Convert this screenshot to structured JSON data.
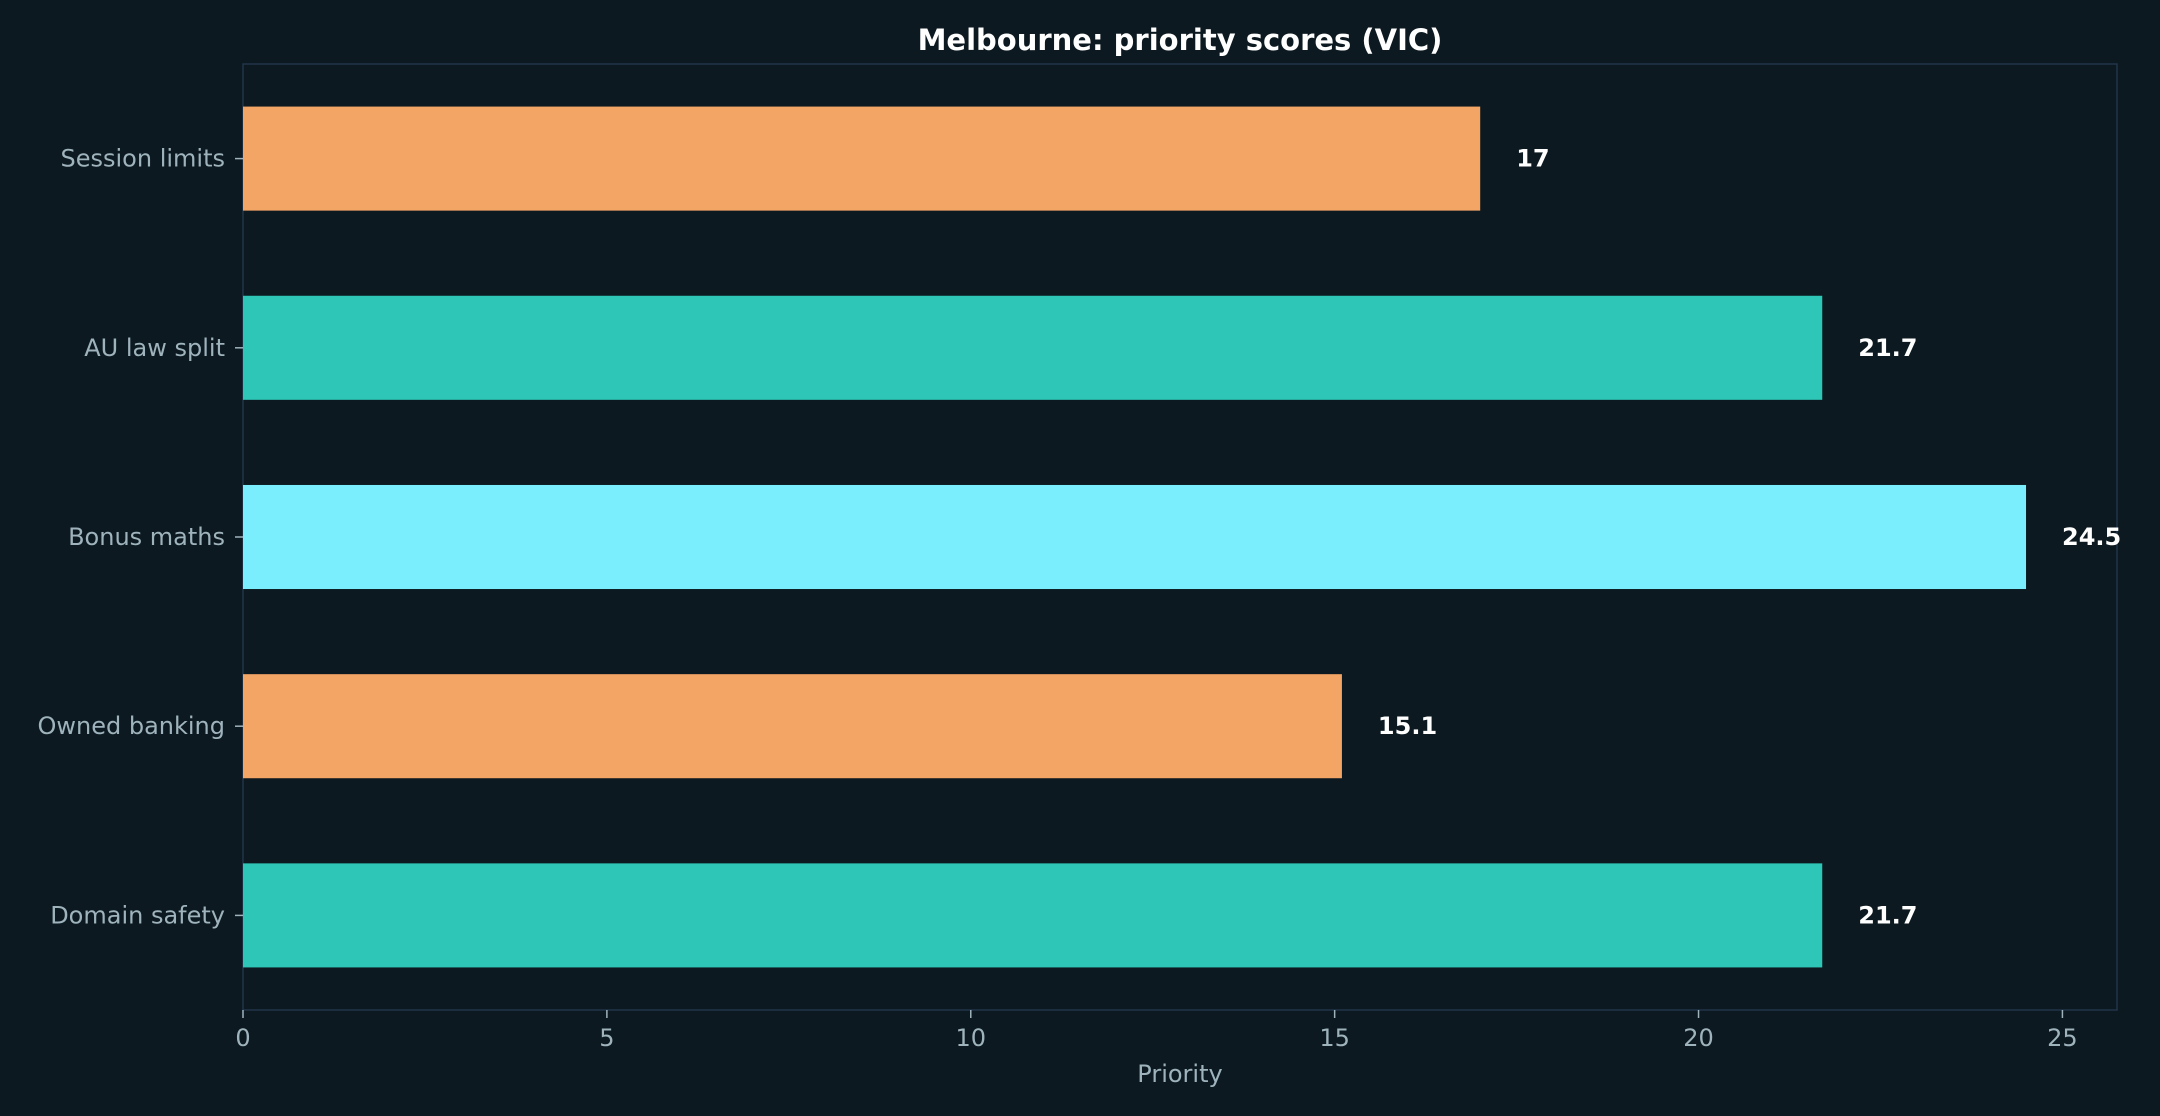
{
  "chart_data": {
    "type": "bar",
    "orientation": "horizontal",
    "title": "Melbourne: priority scores (VIC)",
    "xlabel": "Priority",
    "ylabel": "",
    "categories": [
      "Session limits",
      "AU law split",
      "Bonus maths",
      "Owned banking",
      "Domain safety"
    ],
    "values": [
      17,
      21.7,
      24.5,
      15.1,
      21.7
    ],
    "value_labels": [
      "17",
      "21.7",
      "24.5",
      "15.1",
      "21.7"
    ],
    "bar_colors": [
      "#f3a566",
      "#2ec6b6",
      "#7aeefd",
      "#f3a566",
      "#2ec6b6"
    ],
    "xlim": [
      0,
      25.75
    ],
    "xticks": [
      0,
      5,
      10,
      15,
      20,
      25
    ],
    "grid": false,
    "legend": "none"
  },
  "colors": {
    "background": "#0c1920",
    "axes_frame": "#23344a",
    "tick_text": "#9fb3bd",
    "title_text": "#ffffff",
    "value_text": "#ffffff"
  }
}
